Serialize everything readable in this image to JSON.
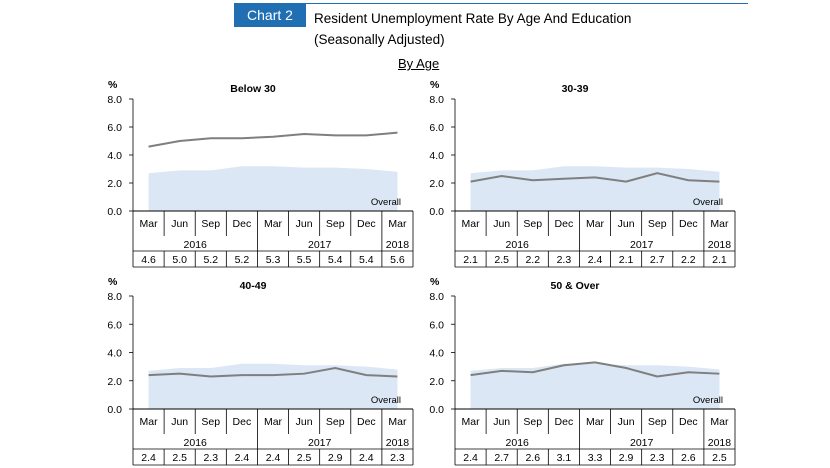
{
  "header": {
    "badge": "Chart 2",
    "title_line1": "Resident Unemployment Rate By Age And Education",
    "title_line2": "(Seasonally Adjusted)",
    "subheading": "By Age",
    "colors": {
      "badge_bg": "#1f6fb2",
      "badge_text": "#ffffff"
    }
  },
  "chart_data": [
    {
      "type": "line",
      "title": "Below 30",
      "ylabel": "%",
      "ylim": [
        0,
        8
      ],
      "yticks": [
        "0.0",
        "2.0",
        "4.0",
        "6.0",
        "8.0"
      ],
      "categories": [
        "Mar",
        "Jun",
        "Sep",
        "Dec",
        "Mar",
        "Jun",
        "Sep",
        "Dec",
        "Mar"
      ],
      "years": [
        "2016",
        "2017",
        "2018"
      ],
      "table_values": [
        "4.6",
        "5.0",
        "5.2",
        "5.2",
        "5.3",
        "5.5",
        "5.4",
        "5.4",
        "5.6"
      ],
      "series": [
        {
          "name": "Below 30",
          "kind": "line",
          "color": "#7f7f7f",
          "values": [
            4.6,
            5.0,
            5.2,
            5.2,
            5.3,
            5.5,
            5.4,
            5.4,
            5.6
          ]
        },
        {
          "name": "Overall",
          "kind": "area",
          "color": "#dbe7f5",
          "values": [
            2.7,
            2.9,
            2.9,
            3.2,
            3.2,
            3.1,
            3.1,
            3.0,
            2.8
          ]
        }
      ],
      "annotation": "Overall"
    },
    {
      "type": "line",
      "title": "30-39",
      "ylabel": "%",
      "ylim": [
        0,
        8
      ],
      "yticks": [
        "0.0",
        "2.0",
        "4.0",
        "6.0",
        "8.0"
      ],
      "categories": [
        "Mar",
        "Jun",
        "Sep",
        "Dec",
        "Mar",
        "Jun",
        "Sep",
        "Dec",
        "Mar"
      ],
      "years": [
        "2016",
        "2017",
        "2018"
      ],
      "table_values": [
        "2.1",
        "2.5",
        "2.2",
        "2.3",
        "2.4",
        "2.1",
        "2.7",
        "2.2",
        "2.1"
      ],
      "series": [
        {
          "name": "30-39",
          "kind": "line",
          "color": "#7f7f7f",
          "values": [
            2.1,
            2.5,
            2.2,
            2.3,
            2.4,
            2.1,
            2.7,
            2.2,
            2.1
          ]
        },
        {
          "name": "Overall",
          "kind": "area",
          "color": "#dbe7f5",
          "values": [
            2.7,
            2.9,
            2.9,
            3.2,
            3.2,
            3.1,
            3.1,
            3.0,
            2.8
          ]
        }
      ],
      "annotation": "Overall"
    },
    {
      "type": "line",
      "title": "40-49",
      "ylabel": "%",
      "ylim": [
        0,
        8
      ],
      "yticks": [
        "0.0",
        "2.0",
        "4.0",
        "6.0",
        "8.0"
      ],
      "categories": [
        "Mar",
        "Jun",
        "Sep",
        "Dec",
        "Mar",
        "Jun",
        "Sep",
        "Dec",
        "Mar"
      ],
      "years": [
        "2016",
        "2017",
        "2018"
      ],
      "table_values": [
        "2.4",
        "2.5",
        "2.3",
        "2.4",
        "2.4",
        "2.5",
        "2.9",
        "2.4",
        "2.3"
      ],
      "series": [
        {
          "name": "40-49",
          "kind": "line",
          "color": "#7f7f7f",
          "values": [
            2.4,
            2.5,
            2.3,
            2.4,
            2.4,
            2.5,
            2.9,
            2.4,
            2.3
          ]
        },
        {
          "name": "Overall",
          "kind": "area",
          "color": "#dbe7f5",
          "values": [
            2.7,
            2.9,
            2.9,
            3.2,
            3.2,
            3.1,
            3.1,
            3.0,
            2.8
          ]
        }
      ],
      "annotation": "Overall"
    },
    {
      "type": "line",
      "title": "50 & Over",
      "ylabel": "%",
      "ylim": [
        0,
        8
      ],
      "yticks": [
        "0.0",
        "2.0",
        "4.0",
        "6.0",
        "8.0"
      ],
      "categories": [
        "Mar",
        "Jun",
        "Sep",
        "Dec",
        "Mar",
        "Jun",
        "Sep",
        "Dec",
        "Mar"
      ],
      "years": [
        "2016",
        "2017",
        "2018"
      ],
      "table_values": [
        "2.4",
        "2.7",
        "2.6",
        "3.1",
        "3.3",
        "2.9",
        "2.3",
        "2.6",
        "2.5"
      ],
      "series": [
        {
          "name": "50 & Over",
          "kind": "line",
          "color": "#7f7f7f",
          "values": [
            2.4,
            2.7,
            2.6,
            3.1,
            3.3,
            2.9,
            2.3,
            2.6,
            2.5
          ]
        },
        {
          "name": "Overall",
          "kind": "area",
          "color": "#dbe7f5",
          "values": [
            2.7,
            2.9,
            2.9,
            3.2,
            3.2,
            3.1,
            3.1,
            3.0,
            2.8
          ]
        }
      ],
      "annotation": "Overall"
    }
  ]
}
